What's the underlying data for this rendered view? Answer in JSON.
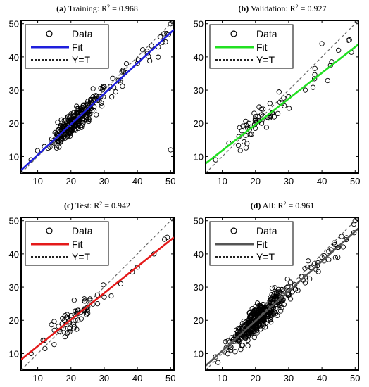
{
  "chart_data": [
    {
      "type": "scatter",
      "panel": "(a)",
      "title_prefix": "Training: R",
      "title_sup": "2",
      "title_value": " = 0.968",
      "fit_color": "#1f1fdc",
      "xlim": [
        5,
        51
      ],
      "ylim": [
        5,
        51
      ],
      "xticks": [
        "10",
        "20",
        "30",
        "40",
        "50"
      ],
      "yticks": [
        "10",
        "20",
        "30",
        "40",
        "50"
      ],
      "legend": [
        "Data",
        "Fit",
        "Y=T"
      ],
      "fit": {
        "slope": 0.92,
        "intercept": 1.3
      },
      "n_points": 320,
      "spread": 2.4,
      "cx": 21,
      "sx": 6.5,
      "data_sample": [
        [
          8,
          9
        ],
        [
          12,
          13
        ],
        [
          15,
          14
        ],
        [
          18,
          19
        ],
        [
          20,
          21
        ],
        [
          22,
          20
        ],
        [
          25,
          24
        ],
        [
          28,
          27
        ],
        [
          30,
          31
        ],
        [
          35,
          33
        ],
        [
          40,
          38
        ],
        [
          43,
          41
        ],
        [
          48,
          47
        ],
        [
          50,
          50
        ],
        [
          50,
          12
        ]
      ]
    },
    {
      "type": "scatter",
      "panel": "(b)",
      "title_prefix": "Validation: R",
      "title_sup": "2",
      "title_value": " = 0.927",
      "fit_color": "#22e022",
      "xlim": [
        5,
        51
      ],
      "ylim": [
        5,
        51
      ],
      "xticks": [
        "10",
        "20",
        "30",
        "40",
        "50"
      ],
      "yticks": [
        "10",
        "20",
        "30",
        "40",
        "50"
      ],
      "legend": [
        "Data",
        "Fit",
        "Y=T"
      ],
      "fit": {
        "slope": 0.78,
        "intercept": 4.0
      },
      "n_points": 70,
      "spread": 3.2,
      "cx": 21,
      "sx": 6.5,
      "data_sample": [
        [
          8,
          9
        ],
        [
          12,
          14
        ],
        [
          15,
          16
        ],
        [
          18,
          20
        ],
        [
          20,
          22
        ],
        [
          22,
          21
        ],
        [
          25,
          23
        ],
        [
          28,
          26
        ],
        [
          30,
          28
        ],
        [
          35,
          30
        ],
        [
          40,
          44
        ],
        [
          45,
          42
        ],
        [
          48,
          45
        ]
      ]
    },
    {
      "type": "scatter",
      "panel": "(c)",
      "title_prefix": "Test: R",
      "title_sup": "2",
      "title_value": " = 0.942",
      "fit_color": "#e41a1a",
      "xlim": [
        5,
        51
      ],
      "ylim": [
        5,
        51
      ],
      "xticks": [
        "10",
        "20",
        "30",
        "40",
        "50"
      ],
      "yticks": [
        "10",
        "20",
        "30",
        "40",
        "50"
      ],
      "legend": [
        "Data",
        "Fit",
        "Y=T"
      ],
      "fit": {
        "slope": 0.8,
        "intercept": 4.2
      },
      "n_points": 70,
      "spread": 3.0,
      "cx": 21,
      "sx": 6.5,
      "data_sample": [
        [
          8,
          10
        ],
        [
          12,
          14
        ],
        [
          15,
          17
        ],
        [
          18,
          20
        ],
        [
          20,
          21
        ],
        [
          22,
          22
        ],
        [
          25,
          23
        ],
        [
          28,
          25
        ],
        [
          30,
          27
        ],
        [
          35,
          31
        ],
        [
          40,
          36
        ],
        [
          45,
          40
        ],
        [
          49,
          45
        ]
      ]
    },
    {
      "type": "scatter",
      "panel": "(d)",
      "title_prefix": "All: R",
      "title_sup": "2",
      "title_value": " = 0.961",
      "fit_color": "#555555",
      "xlim": [
        5,
        51
      ],
      "ylim": [
        5,
        51
      ],
      "xticks": [
        "10",
        "20",
        "30",
        "40",
        "50"
      ],
      "yticks": [
        "10",
        "20",
        "30",
        "40",
        "50"
      ],
      "legend": [
        "Data",
        "Fit",
        "Y=T"
      ],
      "fit": {
        "slope": 0.9,
        "intercept": 1.8
      },
      "n_points": 460,
      "spread": 2.6,
      "cx": 21,
      "sx": 6.8,
      "data_sample": [
        [
          8,
          9
        ],
        [
          12,
          12
        ],
        [
          15,
          15
        ],
        [
          18,
          18
        ],
        [
          20,
          20
        ],
        [
          22,
          21
        ],
        [
          25,
          24
        ],
        [
          28,
          27
        ],
        [
          30,
          29
        ],
        [
          35,
          33
        ],
        [
          40,
          39
        ],
        [
          45,
          42
        ],
        [
          50,
          50
        ]
      ]
    }
  ]
}
